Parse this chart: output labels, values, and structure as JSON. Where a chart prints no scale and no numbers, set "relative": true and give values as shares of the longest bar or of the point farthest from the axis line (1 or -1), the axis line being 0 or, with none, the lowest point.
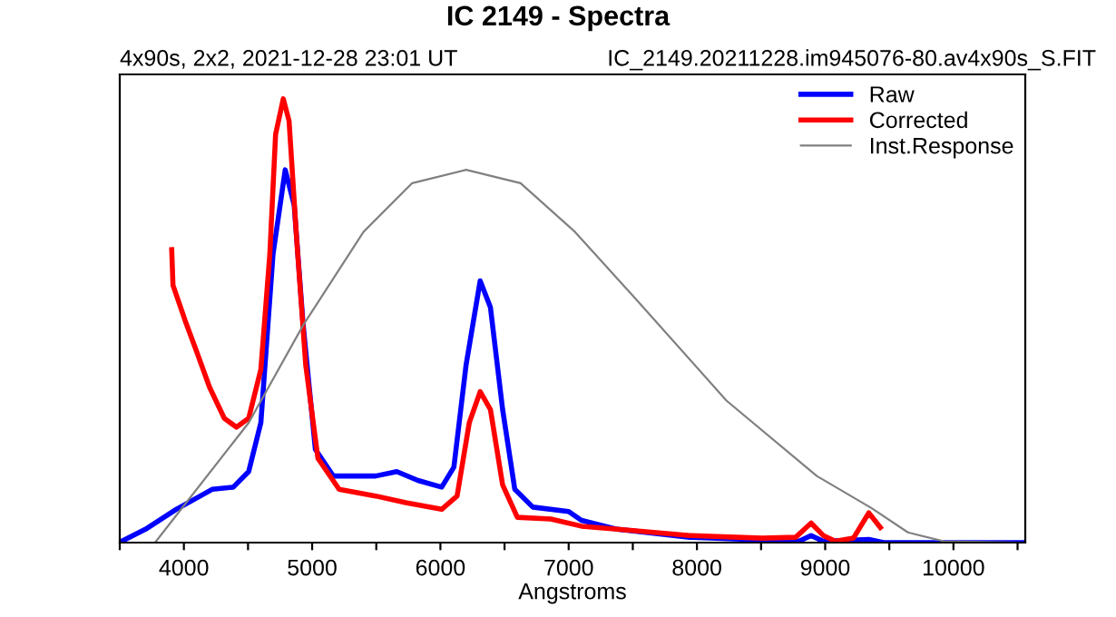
{
  "chart_data": {
    "type": "line",
    "title": "IC 2149 - Spectra",
    "subtitle": "4x90s, 2x2, 2021-12-28 23:01 UT",
    "annotations": [
      "IC_2149.20211228.im945076-80.av4x90s_S.FIT"
    ],
    "xlabel": "Angstroms",
    "relative": true,
    "legend": "top right",
    "grid": false,
    "marker": "none",
    "line_style": "solid",
    "xlim": [
      3500,
      10560
    ],
    "xticks": [
      {
        "value": 3500,
        "label": null
      },
      4000,
      {
        "value": 4500,
        "label": null
      },
      5000,
      {
        "value": 5500,
        "label": null
      },
      6000,
      {
        "value": 6500,
        "label": null
      },
      7000,
      {
        "value": 7500,
        "label": null
      },
      8000,
      {
        "value": 8500,
        "label": null
      },
      9000,
      {
        "value": 9500,
        "label": null
      },
      10000,
      {
        "value": 10500,
        "label": null
      }
    ],
    "series": [
      {
        "name": "Raw",
        "color": "#0000ff",
        "x": [
          3515,
          3700,
          3940,
          4220,
          4385,
          4505,
          4600,
          4695,
          4790,
          4860,
          4930,
          5025,
          5165,
          5495,
          5660,
          5825,
          6010,
          6105,
          6200,
          6310,
          6390,
          6485,
          6580,
          6720,
          7000,
          7100,
          7380,
          7945,
          8795,
          8890,
          8985,
          9340,
          9455,
          10560
        ],
        "values": [
          0.003,
          0.03,
          0.075,
          0.12,
          0.125,
          0.16,
          0.27,
          0.65,
          0.84,
          0.76,
          0.49,
          0.21,
          0.15,
          0.15,
          0.16,
          0.14,
          0.125,
          0.17,
          0.4,
          0.59,
          0.53,
          0.3,
          0.12,
          0.08,
          0.07,
          0.05,
          0.03,
          0.012,
          0.003,
          0.016,
          0.003,
          0.007,
          0,
          0
        ]
      },
      {
        "name": "Corrected",
        "color": "#ff0000",
        "x": [
          3905,
          3915,
          4010,
          4100,
          4200,
          4315,
          4410,
          4505,
          4600,
          4670,
          4715,
          4775,
          4820,
          4880,
          4950,
          5045,
          5210,
          5495,
          5730,
          6010,
          6130,
          6225,
          6310,
          6390,
          6485,
          6600,
          6860,
          7100,
          7380,
          7945,
          8510,
          8770,
          8890,
          8985,
          9080,
          9220,
          9340,
          9430
        ],
        "values": [
          0.66,
          0.58,
          0.5,
          0.43,
          0.35,
          0.28,
          0.26,
          0.28,
          0.39,
          0.65,
          0.92,
          1.0,
          0.95,
          0.68,
          0.4,
          0.19,
          0.12,
          0.105,
          0.09,
          0.075,
          0.105,
          0.27,
          0.34,
          0.3,
          0.13,
          0.057,
          0.053,
          0.037,
          0.03,
          0.016,
          0.01,
          0.012,
          0.044,
          0.016,
          0.003,
          0.01,
          0.067,
          0.034
        ]
      },
      {
        "name": "Inst.Response",
        "color": "#808080",
        "x": [
          3775,
          4505,
          4930,
          5400,
          5780,
          6200,
          6625,
          7050,
          7520,
          8230,
          8935,
          9360,
          9645,
          9925,
          10560
        ],
        "values": [
          0,
          0.27,
          0.49,
          0.7,
          0.81,
          0.84,
          0.81,
          0.7,
          0.55,
          0.32,
          0.15,
          0.078,
          0.023,
          0.003,
          0
        ]
      }
    ]
  }
}
